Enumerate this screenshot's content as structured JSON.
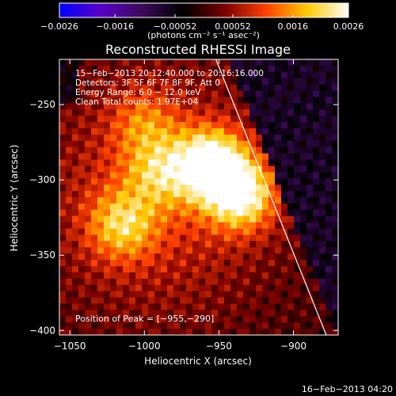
{
  "chart_data": {
    "type": "heatmap",
    "title": "Reconstructed RHESSI Image",
    "xlabel": "Heliocentric X (arcsec)",
    "ylabel": "Heliocentric Y (arcsec)",
    "xlim": [
      -1057,
      -870
    ],
    "ylim": [
      -403,
      -220
    ],
    "x_ticks": [
      -1050,
      -1000,
      -950,
      -900
    ],
    "x_tick_labels": [
      "−1050",
      "−1000",
      "−950",
      "−900"
    ],
    "y_ticks": [
      -250,
      -300,
      -350,
      -400
    ],
    "y_tick_labels": [
      "−250",
      "−300",
      "−350",
      "−400"
    ],
    "colorbar": {
      "range": [
        -0.0026,
        0.0026
      ],
      "ticks": [
        -0.0026,
        -0.0016,
        -0.00052,
        0.00052,
        0.0016,
        0.0026
      ],
      "tick_labels": [
        "−0.0026",
        "−0.0016",
        "−0.00052",
        "0.00052",
        "0.0016",
        "0.0026"
      ],
      "units_label": "(photons cm⁻² s⁻¹ asec⁻²)"
    },
    "annotations": [
      "15−Feb−2013 20:12:40.000 to 20:16:16.000",
      "Detectors: 3F 5F 6F 7F 8F 9F, Att 0",
      "Energy Range: 6.0 − 12.0 keV",
      "Clean     Total counts: 1.97E+04"
    ],
    "peak_label": "Position of Peak = [−955,−290]",
    "peak_position": [
      -955,
      -290
    ],
    "sources": [
      {
        "x": -955,
        "y": -290,
        "intensity": 1.0
      },
      {
        "x": -935,
        "y": -310,
        "intensity": 0.85
      },
      {
        "x": -1015,
        "y": -330,
        "intensity": 0.55
      },
      {
        "x": -990,
        "y": -295,
        "intensity": 0.45
      },
      {
        "x": -1000,
        "y": -262,
        "intensity": 0.35
      }
    ],
    "limb_line": {
      "from": [
        -952,
        -220
      ],
      "to": [
        -878,
        -403
      ]
    },
    "colormap": [
      "#0000ff",
      "#5a00c8",
      "#3c0a5a",
      "#000000",
      "#7a0000",
      "#ff4000",
      "#ffc800",
      "#ffffff"
    ]
  },
  "footer": {
    "timestamp": "16−Feb−2013 04:20"
  }
}
